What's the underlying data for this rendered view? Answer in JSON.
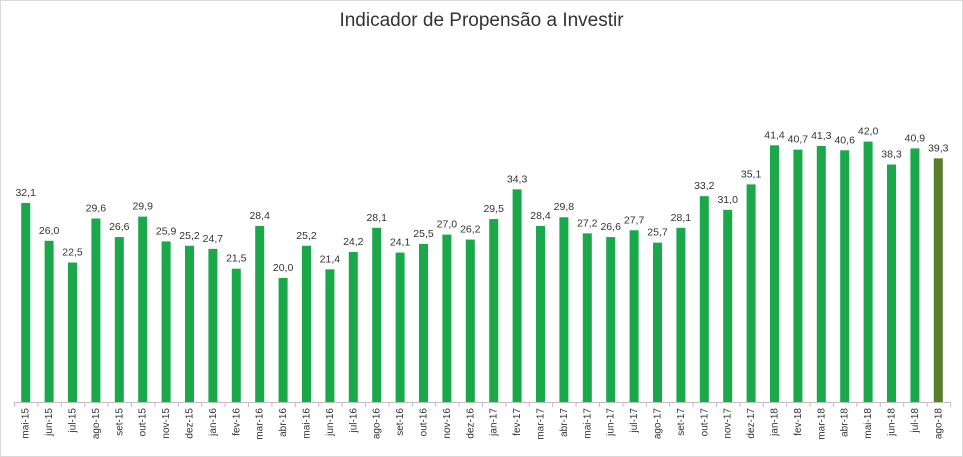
{
  "chart_data": {
    "type": "bar",
    "title": "Indicador de Propensão a Investir",
    "xlabel": "",
    "ylabel": "",
    "ylim": [
      0,
      45
    ],
    "grid": false,
    "legend": "none",
    "categories": [
      "mai-15",
      "jun-15",
      "jul-15",
      "ago-15",
      "set-15",
      "out-15",
      "nov-15",
      "dez-15",
      "jan-16",
      "fev-16",
      "mar-16",
      "abr-16",
      "mai-16",
      "jun-16",
      "jul-16",
      "ago-16",
      "set-16",
      "out-16",
      "nov-16",
      "dez-16",
      "jan-17",
      "fev-17",
      "mar-17",
      "abr-17",
      "mai-17",
      "jun-17",
      "jul-17",
      "ago-17",
      "set-17",
      "out-17",
      "nov-17",
      "dez-17",
      "jan-18",
      "fev-18",
      "mar-18",
      "abr-18",
      "mai-18",
      "jun-18",
      "jul-18",
      "ago-18"
    ],
    "values": [
      32.1,
      26.0,
      22.5,
      29.6,
      26.6,
      29.9,
      25.9,
      25.2,
      24.7,
      21.5,
      28.4,
      20.0,
      25.2,
      21.4,
      24.2,
      28.1,
      24.1,
      25.5,
      27.0,
      26.2,
      29.5,
      34.3,
      28.4,
      29.8,
      27.2,
      26.6,
      27.7,
      25.7,
      28.1,
      33.2,
      31.0,
      35.1,
      41.4,
      40.7,
      41.3,
      40.6,
      42.0,
      38.3,
      40.9,
      39.3
    ],
    "value_labels": [
      "32,1",
      "26,0",
      "22,5",
      "29,6",
      "26,6",
      "29,9",
      "25,9",
      "25,2",
      "24,7",
      "21,5",
      "28,4",
      "20,0",
      "25,2",
      "21,4",
      "24,2",
      "28,1",
      "24,1",
      "25,5",
      "27,0",
      "26,2",
      "29,5",
      "34,3",
      "28,4",
      "29,8",
      "27,2",
      "26,6",
      "27,7",
      "25,7",
      "28,1",
      "33,2",
      "31,0",
      "35,1",
      "41,4",
      "40,7",
      "41,3",
      "40,6",
      "42,0",
      "38,3",
      "40,9",
      "39,3"
    ],
    "colors": {
      "bar": "#1aa84a",
      "highlight_bar": "#5a7d2c",
      "axis": "#bfbfbf",
      "text": "#333333"
    },
    "highlight_last": true
  }
}
